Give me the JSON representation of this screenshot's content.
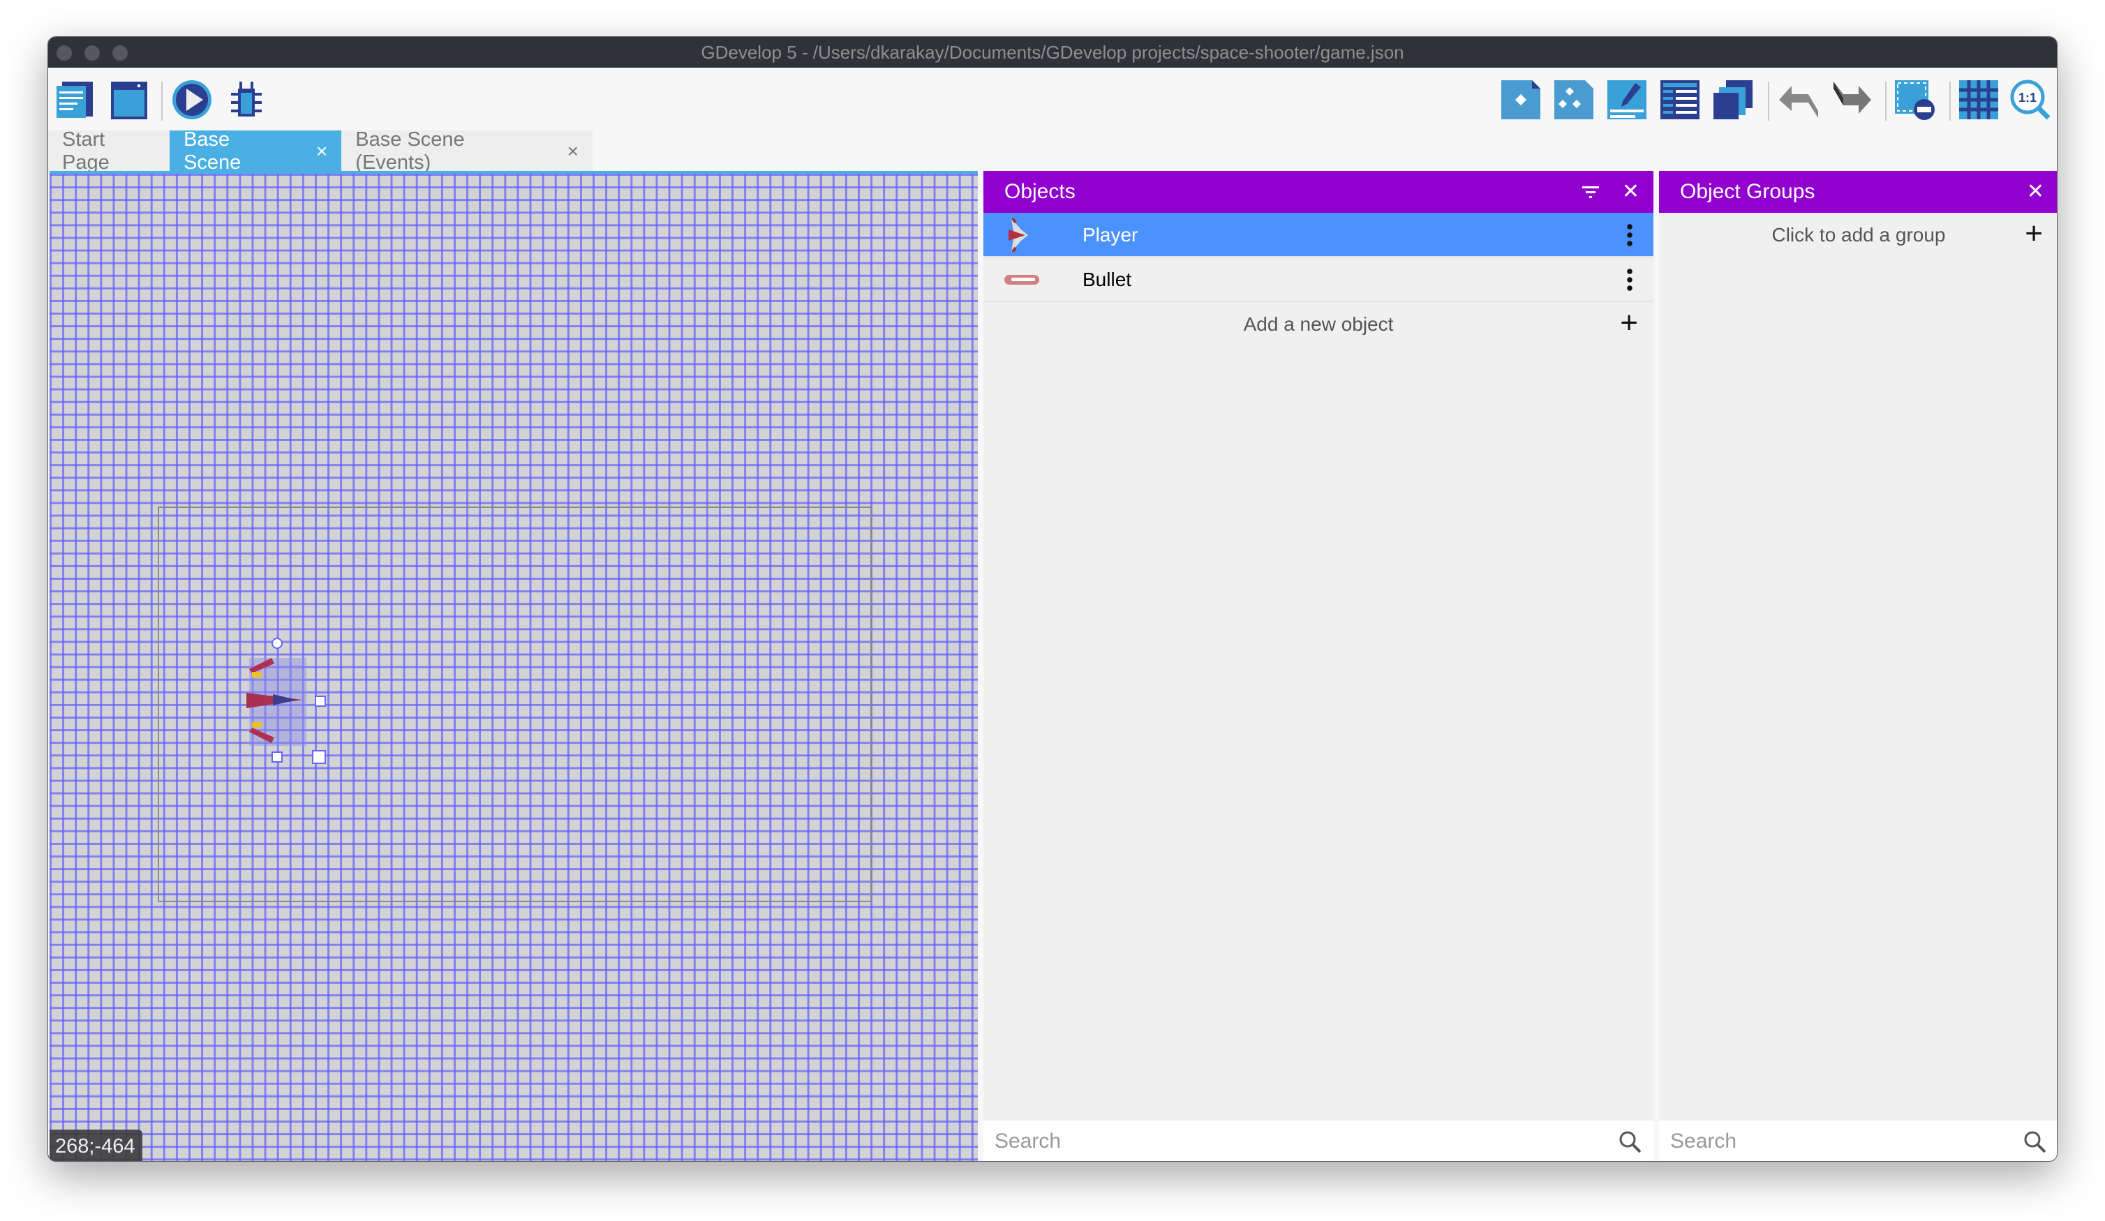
{
  "window": {
    "title": "GDevelop 5 - /Users/dkarakay/Documents/GDevelop projects/space-shooter/game.json"
  },
  "toolbar": {
    "left_icons": [
      "project-manager-icon",
      "scene-properties-icon",
      "preview-play-icon",
      "debugger-bug-icon"
    ],
    "right_icons": [
      "objects-panel-icon",
      "object-groups-icon",
      "properties-icon",
      "instances-list-icon",
      "layers-icon",
      "undo-icon",
      "redo-icon",
      "zoom-fit-icon",
      "grid-icon",
      "zoom-reset-icon"
    ]
  },
  "tabs": [
    {
      "label": "Start Page",
      "active": false
    },
    {
      "label": "Base Scene",
      "active": true,
      "close": "×"
    },
    {
      "label": "Base Scene (Events)",
      "active": false,
      "close": "×"
    }
  ],
  "canvas": {
    "coords": "268;-464",
    "grid": true
  },
  "objects": {
    "title": "Objects",
    "items": [
      {
        "name": "Player",
        "selected": true
      },
      {
        "name": "Bullet",
        "selected": false
      }
    ],
    "add_label": "Add a new object",
    "search_placeholder": "Search"
  },
  "groups": {
    "title": "Object Groups",
    "add_label": "Click to add a group",
    "search_placeholder": "Search"
  },
  "colors": {
    "panel_header": "#9100ce",
    "selection": "#4c92ff",
    "tab_active": "#4ab0e4"
  }
}
